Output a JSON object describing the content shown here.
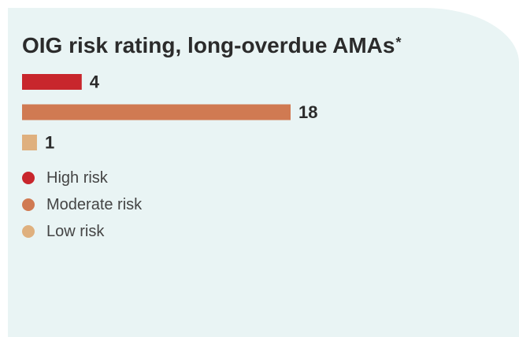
{
  "title": "OIG risk rating, long-overdue AMAs",
  "title_marker": "*",
  "chart_data": {
    "type": "bar",
    "orientation": "horizontal",
    "title": "OIG risk rating, long-overdue AMAs",
    "categories": [
      "High risk",
      "Moderate risk",
      "Low risk"
    ],
    "values": [
      4,
      18,
      1
    ],
    "colors": [
      "#c8262c",
      "#d07a52",
      "#dfb07e"
    ],
    "xlim": [
      0,
      18
    ],
    "grid": false,
    "axes_visible": false,
    "data_labels": true,
    "legend": {
      "position": "bottom-left",
      "entries": [
        {
          "label": "High risk",
          "color": "#c8262c"
        },
        {
          "label": "Moderate risk",
          "color": "#d07a52"
        },
        {
          "label": "Low risk",
          "color": "#dfb07e"
        }
      ]
    }
  },
  "colors": {
    "background": "#e9f4f4",
    "text": "#2b2b2b"
  }
}
